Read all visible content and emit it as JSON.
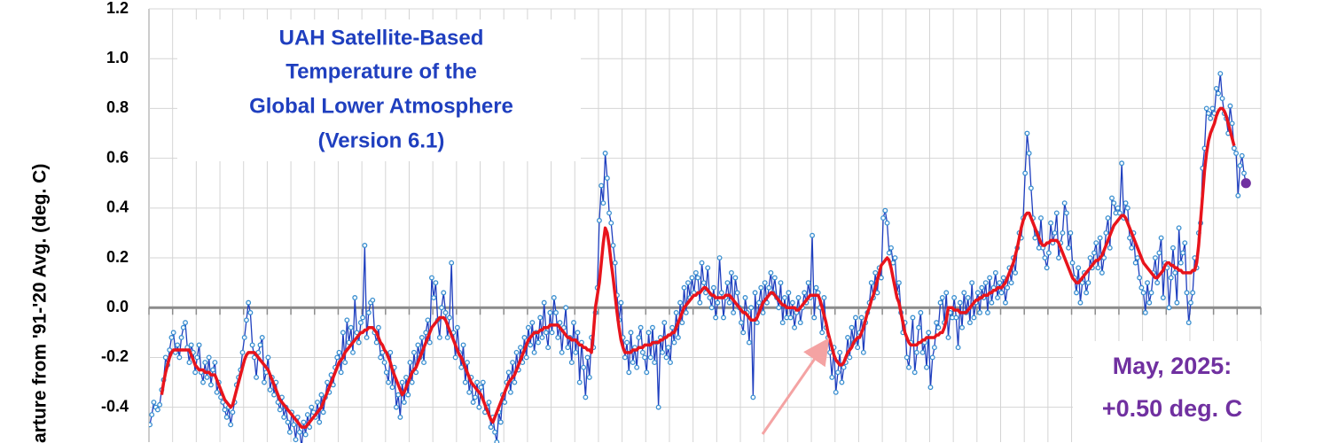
{
  "chart_data": {
    "type": "line",
    "title": [
      "UAH Satellite-Based",
      "Temperature of the",
      "Global Lower Atmosphere",
      "(Version 6.1)"
    ],
    "ylabel": "arture from '91-'20 Avg. (deg. C)",
    "annotations": [
      "May, 2025:",
      "+0.50 deg. C"
    ],
    "ylim": [
      -0.54,
      1.2
    ],
    "yticks": [
      -0.4,
      -0.2,
      {
        "value": 0,
        "label": "0.0"
      },
      0.2,
      0.4,
      0.6,
      0.8,
      {
        "value": 1,
        "label": "1.0"
      },
      1.2
    ],
    "grid": true,
    "last_point_color": "#7030a0",
    "series": [
      {
        "color": "#1f3fbf",
        "marker_color": "#3a8fd0",
        "values": [
          -0.47,
          -0.43,
          -0.38,
          -0.4,
          -0.41,
          -0.39,
          -0.33,
          -0.29,
          -0.2,
          -0.23,
          -0.17,
          -0.12,
          -0.1,
          -0.18,
          -0.15,
          -0.2,
          -0.12,
          -0.08,
          -0.06,
          -0.16,
          -0.22,
          -0.15,
          -0.18,
          -0.26,
          -0.2,
          -0.15,
          -0.26,
          -0.3,
          -0.22,
          -0.28,
          -0.2,
          -0.31,
          -0.25,
          -0.22,
          -0.34,
          -0.3,
          -0.36,
          -0.38,
          -0.41,
          -0.44,
          -0.4,
          -0.47,
          -0.42,
          -0.38,
          -0.31,
          -0.28,
          -0.25,
          -0.18,
          -0.12,
          -0.05,
          0.02,
          -0.02,
          -0.15,
          -0.2,
          -0.28,
          -0.18,
          -0.15,
          -0.12,
          -0.3,
          -0.26,
          -0.2,
          -0.33,
          -0.28,
          -0.35,
          -0.3,
          -0.38,
          -0.41,
          -0.36,
          -0.44,
          -0.4,
          -0.46,
          -0.5,
          -0.42,
          -0.47,
          -0.53,
          -0.44,
          -0.5,
          -0.56,
          -0.46,
          -0.51,
          -0.43,
          -0.48,
          -0.4,
          -0.42,
          -0.44,
          -0.38,
          -0.46,
          -0.35,
          -0.42,
          -0.36,
          -0.3,
          -0.34,
          -0.27,
          -0.31,
          -0.24,
          -0.2,
          -0.18,
          -0.26,
          -0.1,
          -0.22,
          -0.05,
          -0.14,
          -0.08,
          -0.18,
          0.04,
          -0.1,
          -0.14,
          -0.06,
          -0.04,
          0.25,
          -0.12,
          -0.02,
          0.02,
          0.03,
          -0.1,
          -0.14,
          -0.08,
          -0.2,
          -0.18,
          -0.22,
          -0.26,
          -0.3,
          -0.18,
          -0.32,
          -0.24,
          -0.4,
          -0.35,
          -0.44,
          -0.3,
          -0.38,
          -0.28,
          -0.35,
          -0.22,
          -0.3,
          -0.18,
          -0.26,
          -0.15,
          -0.2,
          -0.12,
          -0.22,
          -0.1,
          -0.05,
          -0.14,
          0.12,
          0.04,
          0.1,
          -0.05,
          -0.12,
          0.0,
          0.06,
          -0.02,
          -0.12,
          -0.04,
          0.18,
          -0.1,
          -0.2,
          -0.08,
          -0.18,
          -0.24,
          -0.15,
          -0.3,
          -0.22,
          -0.34,
          -0.28,
          -0.38,
          -0.36,
          -0.3,
          -0.4,
          -0.32,
          -0.3,
          -0.42,
          -0.4,
          -0.38,
          -0.48,
          -0.44,
          -0.5,
          -0.54,
          -0.42,
          -0.46,
          -0.35,
          -0.38,
          -0.3,
          -0.26,
          -0.34,
          -0.22,
          -0.3,
          -0.18,
          -0.25,
          -0.16,
          -0.22,
          -0.12,
          -0.2,
          -0.08,
          -0.15,
          -0.06,
          -0.18,
          -0.1,
          -0.14,
          -0.04,
          -0.12,
          0.02,
          -0.1,
          -0.16,
          -0.02,
          -0.1,
          0.04,
          -0.02,
          -0.12,
          -0.06,
          -0.18,
          -0.08,
          0.0,
          -0.16,
          -0.12,
          -0.22,
          -0.06,
          -0.18,
          -0.1,
          -0.3,
          -0.14,
          -0.24,
          -0.36,
          -0.2,
          -0.28,
          -0.12,
          -0.16,
          -0.02,
          0.08,
          0.35,
          0.49,
          0.42,
          0.62,
          0.52,
          0.38,
          0.34,
          0.25,
          0.18,
          0.05,
          -0.05,
          0.02,
          -0.12,
          -0.2,
          -0.14,
          -0.26,
          -0.1,
          -0.22,
          -0.16,
          -0.24,
          -0.12,
          -0.08,
          -0.18,
          -0.2,
          -0.26,
          -0.1,
          -0.2,
          -0.08,
          -0.22,
          -0.14,
          -0.4,
          -0.12,
          -0.18,
          -0.06,
          -0.2,
          -0.16,
          -0.22,
          -0.08,
          -0.14,
          -0.02,
          -0.12,
          0.02,
          -0.06,
          0.08,
          -0.02,
          0.1,
          0.04,
          0.12,
          0.06,
          0.14,
          0.12,
          0.02,
          0.18,
          0.1,
          0.06,
          0.16,
          0.04,
          0.0,
          0.08,
          -0.04,
          0.02,
          0.2,
          0.06,
          -0.04,
          0.04,
          0.1,
          0.02,
          0.14,
          -0.02,
          0.12,
          0.06,
          0.0,
          -0.06,
          -0.1,
          0.04,
          -0.02,
          -0.14,
          0.0,
          -0.36,
          0.06,
          -0.06,
          0.02,
          0.08,
          -0.02,
          0.1,
          0.02,
          0.08,
          0.14,
          0.06,
          0.12,
          0.04,
          0.0,
          0.1,
          -0.06,
          0.04,
          -0.04,
          0.06,
          -0.04,
          0.02,
          -0.08,
          -0.02,
          0.04,
          -0.06,
          0.0,
          0.06,
          0.02,
          0.1,
          0.04,
          0.29,
          -0.04,
          0.08,
          0.06,
          0.0,
          -0.1,
          0.04,
          -0.08,
          -0.12,
          -0.18,
          -0.28,
          -0.16,
          -0.34,
          -0.26,
          -0.18,
          -0.3,
          -0.24,
          -0.22,
          -0.12,
          -0.2,
          -0.08,
          -0.14,
          -0.04,
          -0.16,
          -0.1,
          -0.04,
          -0.18,
          -0.06,
          -0.02,
          0.02,
          0.1,
          0.04,
          0.14,
          0.06,
          0.16,
          0.12,
          0.36,
          0.39,
          0.34,
          0.22,
          0.24,
          0.18,
          0.2,
          0.06,
          0.1,
          -0.02,
          -0.1,
          -0.06,
          -0.2,
          -0.24,
          -0.14,
          -0.04,
          -0.26,
          -0.18,
          -0.08,
          -0.02,
          -0.18,
          -0.14,
          -0.24,
          -0.1,
          -0.32,
          -0.2,
          -0.16,
          -0.06,
          -0.08,
          0.02,
          0.04,
          -0.06,
          0.06,
          -0.12,
          -0.02,
          -0.04,
          0.04,
          -0.04,
          -0.16,
          0.02,
          -0.08,
          0.06,
          -0.02,
          0.04,
          -0.06,
          0.1,
          -0.04,
          0.02,
          0.06,
          -0.02,
          0.08,
          0.04,
          0.1,
          -0.02,
          0.12,
          0.02,
          0.08,
          0.14,
          0.04,
          0.1,
          0.06,
          0.12,
          0.02,
          0.08,
          0.16,
          0.1,
          0.2,
          0.14,
          0.24,
          0.3,
          0.28,
          0.36,
          0.54,
          0.7,
          0.62,
          0.48,
          0.36,
          0.28,
          0.3,
          0.24,
          0.36,
          0.24,
          0.2,
          0.16,
          0.22,
          0.34,
          0.26,
          0.3,
          0.38,
          0.2,
          0.26,
          0.3,
          0.42,
          0.38,
          0.24,
          0.3,
          0.18,
          0.12,
          0.06,
          0.16,
          0.02,
          0.1,
          0.14,
          0.06,
          0.1,
          0.2,
          0.16,
          0.22,
          0.26,
          0.16,
          0.28,
          0.14,
          0.2,
          0.3,
          0.36,
          0.24,
          0.44,
          0.42,
          0.38,
          0.4,
          0.38,
          0.58,
          0.36,
          0.42,
          0.4,
          0.28,
          0.24,
          0.3,
          0.18,
          0.2,
          0.12,
          0.08,
          0.06,
          -0.02,
          0.1,
          0.02,
          0.06,
          0.14,
          0.2,
          0.1,
          0.22,
          0.28,
          0.04,
          0.18,
          0.16,
          0.0,
          0.12,
          0.24,
          0.14,
          0.02,
          0.32,
          0.18,
          0.22,
          0.26,
          0.06,
          -0.06,
          0.02,
          0.06,
          0.2,
          0.16,
          0.3,
          0.34,
          0.56,
          0.64,
          0.8,
          0.78,
          0.76,
          0.8,
          0.78,
          0.88,
          0.86,
          0.94,
          0.84,
          0.78,
          0.76,
          0.7,
          0.81,
          0.74,
          0.64,
          0.62,
          0.45,
          0.57,
          0.61,
          0.54,
          0.5
        ]
      },
      {
        "color": "#e8141c",
        "values": [
          null,
          null,
          null,
          null,
          null,
          null,
          -0.35,
          -0.3,
          -0.26,
          -0.23,
          -0.2,
          -0.18,
          -0.17,
          -0.17,
          -0.17,
          -0.17,
          -0.17,
          -0.17,
          -0.17,
          -0.17,
          -0.17,
          -0.19,
          -0.21,
          -0.23,
          -0.24,
          -0.25,
          -0.25,
          -0.25,
          -0.26,
          -0.26,
          -0.26,
          -0.27,
          -0.27,
          -0.27,
          -0.29,
          -0.31,
          -0.33,
          -0.35,
          -0.37,
          -0.38,
          -0.39,
          -0.4,
          -0.39,
          -0.36,
          -0.33,
          -0.3,
          -0.27,
          -0.24,
          -0.21,
          -0.19,
          -0.18,
          -0.18,
          -0.18,
          -0.18,
          -0.19,
          -0.2,
          -0.21,
          -0.22,
          -0.23,
          -0.24,
          -0.25,
          -0.27,
          -0.29,
          -0.31,
          -0.33,
          -0.35,
          -0.37,
          -0.38,
          -0.39,
          -0.4,
          -0.41,
          -0.42,
          -0.43,
          -0.44,
          -0.45,
          -0.46,
          -0.47,
          -0.48,
          -0.48,
          -0.48,
          -0.47,
          -0.46,
          -0.45,
          -0.44,
          -0.43,
          -0.42,
          -0.41,
          -0.4,
          -0.38,
          -0.36,
          -0.34,
          -0.32,
          -0.3,
          -0.28,
          -0.26,
          -0.24,
          -0.22,
          -0.21,
          -0.2,
          -0.18,
          -0.17,
          -0.16,
          -0.15,
          -0.14,
          -0.13,
          -0.12,
          -0.11,
          -0.1,
          -0.1,
          -0.09,
          -0.09,
          -0.08,
          -0.08,
          -0.08,
          -0.09,
          -0.1,
          -0.12,
          -0.14,
          -0.15,
          -0.17,
          -0.18,
          -0.2,
          -0.22,
          -0.25,
          -0.27,
          -0.29,
          -0.31,
          -0.33,
          -0.35,
          -0.34,
          -0.32,
          -0.3,
          -0.28,
          -0.26,
          -0.25,
          -0.24,
          -0.22,
          -0.2,
          -0.18,
          -0.16,
          -0.14,
          -0.12,
          -0.1,
          -0.08,
          -0.07,
          -0.06,
          -0.05,
          -0.04,
          -0.04,
          -0.04,
          -0.05,
          -0.07,
          -0.09,
          -0.11,
          -0.13,
          -0.15,
          -0.17,
          -0.19,
          -0.2,
          -0.22,
          -0.24,
          -0.26,
          -0.28,
          -0.3,
          -0.31,
          -0.32,
          -0.33,
          -0.34,
          -0.35,
          -0.37,
          -0.39,
          -0.41,
          -0.43,
          -0.45,
          -0.46,
          -0.44,
          -0.42,
          -0.4,
          -0.38,
          -0.36,
          -0.34,
          -0.32,
          -0.3,
          -0.29,
          -0.28,
          -0.27,
          -0.25,
          -0.23,
          -0.21,
          -0.19,
          -0.17,
          -0.15,
          -0.13,
          -0.12,
          -0.11,
          -0.1,
          -0.1,
          -0.1,
          -0.09,
          -0.09,
          -0.08,
          -0.08,
          -0.08,
          -0.07,
          -0.07,
          -0.07,
          -0.07,
          -0.07,
          -0.08,
          -0.09,
          -0.1,
          -0.11,
          -0.12,
          -0.12,
          -0.13,
          -0.13,
          -0.13,
          -0.14,
          -0.15,
          -0.15,
          -0.16,
          -0.16,
          -0.17,
          -0.17,
          -0.18,
          -0.1,
          0.0,
          0.05,
          0.1,
          0.18,
          0.26,
          0.32,
          0.3,
          0.25,
          0.18,
          0.12,
          0.05,
          -0.02,
          -0.08,
          -0.13,
          -0.16,
          -0.18,
          -0.18,
          -0.18,
          -0.18,
          -0.17,
          -0.17,
          -0.17,
          -0.16,
          -0.16,
          -0.16,
          -0.15,
          -0.15,
          -0.15,
          -0.15,
          -0.14,
          -0.14,
          -0.14,
          -0.14,
          -0.13,
          -0.13,
          -0.12,
          -0.12,
          -0.11,
          -0.11,
          -0.1,
          -0.1,
          -0.08,
          -0.06,
          -0.04,
          -0.02,
          0.0,
          0.01,
          0.02,
          0.03,
          0.04,
          0.05,
          0.05,
          0.06,
          0.06,
          0.07,
          0.08,
          0.08,
          0.07,
          0.06,
          0.05,
          0.05,
          0.04,
          0.04,
          0.04,
          0.04,
          0.04,
          0.05,
          0.05,
          0.05,
          0.04,
          0.03,
          0.02,
          0.01,
          0.0,
          -0.01,
          -0.02,
          -0.02,
          -0.03,
          -0.04,
          -0.05,
          -0.05,
          -0.05,
          -0.04,
          -0.02,
          0.0,
          0.02,
          0.03,
          0.04,
          0.05,
          0.06,
          0.06,
          0.05,
          0.04,
          0.03,
          0.02,
          0.01,
          0.01,
          0.0,
          0.0,
          0.0,
          0.0,
          0.0,
          -0.01,
          -0.01,
          0.0,
          0.01,
          0.02,
          0.03,
          0.04,
          0.05,
          0.05,
          0.05,
          0.05,
          0.05,
          0.03,
          0.0,
          -0.03,
          -0.06,
          -0.1,
          -0.13,
          -0.16,
          -0.19,
          -0.21,
          -0.22,
          -0.23,
          -0.23,
          -0.22,
          -0.2,
          -0.18,
          -0.17,
          -0.16,
          -0.14,
          -0.13,
          -0.12,
          -0.12,
          -0.1,
          -0.08,
          -0.05,
          -0.02,
          0.0,
          0.03,
          0.05,
          0.08,
          0.11,
          0.14,
          0.17,
          0.18,
          0.19,
          0.2,
          0.19,
          0.16,
          0.12,
          0.08,
          0.04,
          0.02,
          -0.02,
          -0.06,
          -0.1,
          -0.12,
          -0.14,
          -0.15,
          -0.15,
          -0.15,
          -0.15,
          -0.14,
          -0.14,
          -0.13,
          -0.13,
          -0.12,
          -0.12,
          -0.12,
          -0.12,
          -0.12,
          -0.11,
          -0.11,
          -0.1,
          -0.1,
          -0.08,
          -0.05,
          0.0,
          0.0,
          0.0,
          -0.01,
          -0.01,
          -0.01,
          -0.02,
          -0.02,
          -0.02,
          -0.02,
          -0.01,
          0.0,
          0.01,
          0.02,
          0.03,
          0.03,
          0.04,
          0.04,
          0.05,
          0.05,
          0.05,
          0.06,
          0.06,
          0.07,
          0.07,
          0.08,
          0.08,
          0.08,
          0.09,
          0.1,
          0.12,
          0.14,
          0.16,
          0.18,
          0.21,
          0.24,
          0.28,
          0.32,
          0.35,
          0.37,
          0.38,
          0.38,
          0.36,
          0.34,
          0.32,
          0.3,
          0.28,
          0.26,
          0.25,
          0.25,
          0.26,
          0.26,
          0.27,
          0.27,
          0.27,
          0.27,
          0.26,
          0.24,
          0.22,
          0.2,
          0.18,
          0.16,
          0.14,
          0.12,
          0.11,
          0.1,
          0.1,
          0.11,
          0.12,
          0.13,
          0.14,
          0.15,
          0.16,
          0.17,
          0.18,
          0.19,
          0.19,
          0.2,
          0.21,
          0.23,
          0.25,
          0.27,
          0.29,
          0.31,
          0.33,
          0.34,
          0.35,
          0.36,
          0.37,
          0.37,
          0.36,
          0.34,
          0.32,
          0.3,
          0.28,
          0.26,
          0.24,
          0.22,
          0.2,
          0.18,
          0.17,
          0.16,
          0.15,
          0.14,
          0.13,
          0.12,
          0.12,
          0.13,
          0.14,
          0.15,
          0.17,
          0.18,
          0.18,
          0.17,
          0.17,
          0.16,
          0.16,
          0.15,
          0.15,
          0.14,
          0.14,
          0.14,
          0.14,
          0.14,
          0.15,
          0.15,
          0.18,
          0.25,
          0.35,
          0.45,
          0.55,
          0.62,
          0.67,
          0.7,
          0.72,
          0.74,
          0.77,
          0.79,
          0.8,
          0.8,
          0.79,
          0.77,
          0.74,
          0.71,
          0.68,
          0.65,
          null,
          null,
          null,
          null,
          null,
          null
        ]
      }
    ]
  }
}
